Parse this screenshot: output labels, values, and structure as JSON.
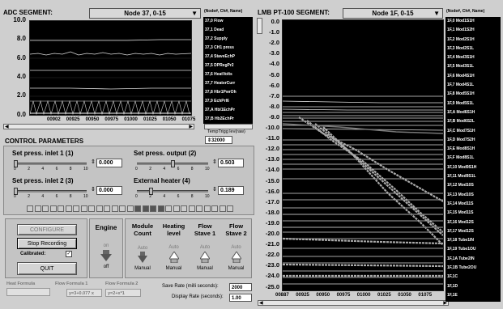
{
  "adc": {
    "title": "ADC SEGMENT:",
    "node": "Node 37, 0-15",
    "legend_header": "(Node#, Ch#, Name)",
    "yticks": [
      "10.0",
      "8.0",
      "6.0",
      "4.0",
      "2.0",
      "0.0"
    ],
    "xticks": [
      "00902",
      "00925",
      "00950",
      "00975",
      "01000",
      "01025",
      "01050",
      "01075"
    ],
    "legend": [
      "37,0 Flow",
      "37,1 Dead",
      "37,2 Supply",
      "37,3 CH1 press",
      "37,4 StaveEchP",
      "37,5 DPRegPr2",
      "37,6 HeatVolts",
      "37,7 HeaterCurr",
      "37,8 Hbr1PwrOh",
      "37,9 EchPrI6",
      "37,A Hbl1EchPr",
      "37,B Hb2EchPr"
    ],
    "trig_label": "TempTrigg lev(raw)",
    "trig_value": "32000"
  },
  "control": {
    "title": "CONTROL PARAMETERS",
    "params": [
      {
        "label": "Set press. inlet 1 (1)",
        "value": "0.000"
      },
      {
        "label": "Set press. output (2)",
        "value": "0.503"
      },
      {
        "label": "Set press. inlet 2 (3)",
        "value": "0.000"
      },
      {
        "label": "External heater (4)",
        "value": "0.189"
      }
    ],
    "ticks": [
      "0",
      "2",
      "4",
      "6",
      "8",
      "10"
    ]
  },
  "buttons": {
    "configure": "CONFIGURE",
    "stop": "Stop Recording",
    "calibrated": "Calibrated:",
    "quit": "QUIT"
  },
  "engine": {
    "title": "Engine",
    "on": "on",
    "off": "off"
  },
  "modes": [
    {
      "title": "Module Count",
      "top": "Auto",
      "bottom": "Manual"
    },
    {
      "title": "Heating level",
      "top": "Auto",
      "bottom": "Manual"
    },
    {
      "title": "Flow Stave 1",
      "top": "Auto",
      "bottom": "Manual"
    },
    {
      "title": "Flow Stave 2",
      "top": "Auto",
      "bottom": "Manual"
    }
  ],
  "formulas": {
    "heat_label": "Heat Formula",
    "flow1_label": "Flow Formula 1",
    "flow1_value": "y=3+0.077 x",
    "flow2_label": "Flow Formula 2",
    "flow2_value": "y=2+x*1"
  },
  "rates": {
    "save_label": "Save Rate (milli seconds):",
    "save_value": "2000",
    "display_label": "Display Rate (seconds):",
    "display_value": "1.00"
  },
  "lmb": {
    "title": "LMB PT-100 SEGMENT:",
    "node": "Node 1F, 0-15",
    "legend_header": "(Node#, Ch#, Name)",
    "yticks": [
      "0.0",
      "-1.0",
      "-2.0",
      "-3.0",
      "-4.0",
      "-5.0",
      "-6.0",
      "-7.0",
      "-8.0",
      "-9.0",
      "-10.0",
      "-11.0",
      "-12.0",
      "-13.0",
      "-14.0",
      "-15.0",
      "-16.0",
      "-17.0",
      "-18.0",
      "-19.0",
      "-20.0",
      "-21.0",
      "-22.0",
      "-23.0",
      "-24.0",
      "-25.0"
    ],
    "xticks": [
      "00887",
      "00925",
      "00950",
      "00975",
      "01000",
      "01025",
      "01050",
      "01075"
    ],
    "legend": [
      "1F,0 Mod1S1H",
      "1F,1 Mod1S2H",
      "1F,2 Mod2S1H",
      "1F,3 Mod2S1L",
      "1F,4 Mod3S1H",
      "1F,5 Mod3S1L",
      "1F,6 Mod4S1H",
      "1F,7 Mod4S1L",
      "1F,8 Mod5S1H",
      "1F,9 Mod5S1L",
      "1F,A Mod6S1H",
      "1F,B Mod6S2L",
      "1F,C Mod7S1H",
      "1F,D Mod7S2H",
      "1F,E Mod8S1H",
      "1F,F Mod8S1L",
      "1F,10 Mod9S1H",
      "1F,11 Mod9S1L",
      "1F,12 Mod10S",
      "1F,13 Mod10S",
      "1F,14 Mod11S",
      "1F,15 Mod11S",
      "1F,16 Mod12S",
      "1F,17 Mod12S",
      "1F,18 Tube1IN",
      "1F,19 Tube1OU",
      "1F,1A Tube2IN",
      "1F,1B Tube2OU",
      "1F,1C",
      "1F,1D",
      "1F,1E"
    ]
  }
}
